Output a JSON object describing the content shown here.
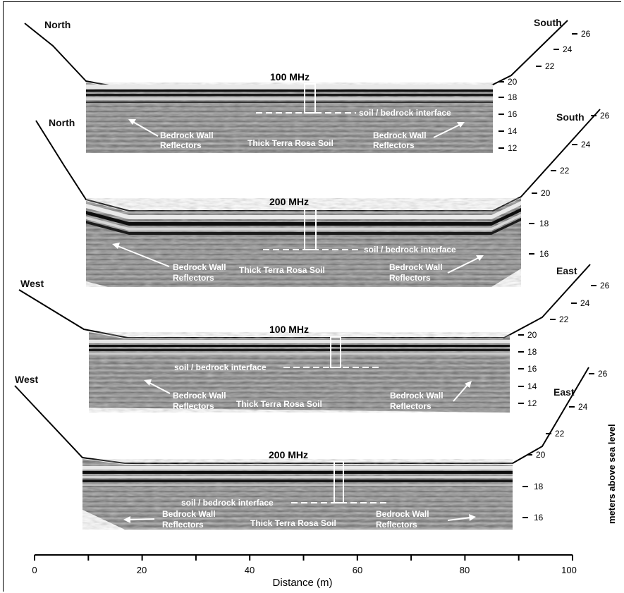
{
  "panels": [
    {
      "left_direction": "North",
      "right_direction": "South",
      "frequency": "100 MHz",
      "interface_label": "soil / bedrock interface",
      "soil_label": "Thick Terra Rosa Soil",
      "reflector_label_line1": "Bedrock Wall",
      "reflector_label_line2": "Reflectors",
      "elevations": [
        "26",
        "24",
        "22",
        "20",
        "18",
        "16",
        "14",
        "12"
      ]
    },
    {
      "left_direction": "North",
      "right_direction": "South",
      "frequency": "200 MHz",
      "interface_label": "soil / bedrock interface",
      "soil_label": "Thick Terra Rosa Soil",
      "reflector_label_line1": "Bedrock Wall",
      "reflector_label_line2": "Reflectors",
      "elevations": [
        "26",
        "24",
        "22",
        "20",
        "18",
        "16"
      ]
    },
    {
      "left_direction": "West",
      "right_direction": "East",
      "frequency": "100 MHz",
      "interface_label": "soil / bedrock interface",
      "soil_label": "Thick Terra Rosa Soil",
      "reflector_label_line1": "Bedrock Wall",
      "reflector_label_line2": "Reflectors",
      "elevations": [
        "26",
        "24",
        "22",
        "20",
        "18",
        "16",
        "14",
        "12"
      ]
    },
    {
      "left_direction": "West",
      "right_direction": "East",
      "frequency": "200 MHz",
      "interface_label": "soil / bedrock interface",
      "soil_label": "Thick Terra Rosa Soil",
      "reflector_label_line1": "Bedrock Wall",
      "reflector_label_line2": "Reflectors",
      "elevations": [
        "26",
        "24",
        "22",
        "20",
        "18",
        "16"
      ]
    }
  ],
  "x_axis": {
    "title": "Distance (m)",
    "ticks": [
      "0",
      "20",
      "40",
      "60",
      "80",
      "100"
    ]
  },
  "y_axis_title": "meters above sea level",
  "colors": {
    "radargram": "#8a8a8a",
    "line": "#000000",
    "label_on_image": "#ffffff"
  }
}
